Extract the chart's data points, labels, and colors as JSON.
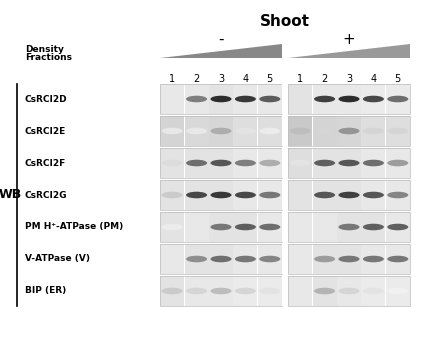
{
  "title": "Shoot",
  "minus_label": "-",
  "plus_label": "+",
  "density_label": "Density",
  "fractions_label": "Fractions",
  "wb_label": "WB",
  "row_labels": [
    "CsRCI2D",
    "CsRCI2E",
    "CsRCI2F",
    "CsRCI2G",
    "PM H⁺-ATPase (PM)",
    "V-ATPase (V)",
    "BIP (ER)"
  ],
  "fraction_numbers": [
    "1",
    "2",
    "3",
    "4",
    "5"
  ],
  "background_color": "#ffffff",
  "minus_bands": {
    "CsRCI2D": [
      0.04,
      0.55,
      0.9,
      0.85,
      0.7
    ],
    "CsRCI2E": [
      0.1,
      0.1,
      0.35,
      0.12,
      0.08
    ],
    "CsRCI2F": [
      0.15,
      0.62,
      0.72,
      0.55,
      0.35
    ],
    "CsRCI2G": [
      0.22,
      0.78,
      0.85,
      0.78,
      0.58
    ],
    "PM H+-ATPase": [
      0.08,
      0.1,
      0.58,
      0.68,
      0.62
    ],
    "V-ATPase": [
      0.1,
      0.48,
      0.62,
      0.58,
      0.52
    ],
    "BIP": [
      0.22,
      0.18,
      0.28,
      0.18,
      0.12
    ]
  },
  "plus_bands": {
    "CsRCI2D": [
      0.04,
      0.82,
      0.9,
      0.78,
      0.62
    ],
    "CsRCI2E": [
      0.28,
      0.18,
      0.45,
      0.18,
      0.18
    ],
    "CsRCI2F": [
      0.12,
      0.68,
      0.72,
      0.62,
      0.42
    ],
    "CsRCI2G": [
      0.04,
      0.72,
      0.82,
      0.72,
      0.52
    ],
    "PM H+-ATPase": [
      0.04,
      0.04,
      0.58,
      0.68,
      0.68
    ],
    "V-ATPase": [
      0.1,
      0.42,
      0.58,
      0.58,
      0.58
    ],
    "BIP": [
      0.04,
      0.32,
      0.18,
      0.12,
      0.06
    ]
  },
  "lane_bg_minus": [
    [
      0.91,
      0.91,
      0.89,
      0.91,
      0.91
    ],
    [
      0.83,
      0.85,
      0.84,
      0.87,
      0.87
    ],
    [
      0.89,
      0.89,
      0.89,
      0.91,
      0.91
    ],
    [
      0.89,
      0.89,
      0.89,
      0.91,
      0.91
    ],
    [
      0.89,
      0.91,
      0.89,
      0.89,
      0.91
    ],
    [
      0.91,
      0.89,
      0.89,
      0.91,
      0.91
    ],
    [
      0.89,
      0.91,
      0.91,
      0.92,
      0.92
    ]
  ],
  "lane_bg_plus": [
    [
      0.89,
      0.91,
      0.91,
      0.92,
      0.92
    ],
    [
      0.79,
      0.83,
      0.84,
      0.87,
      0.87
    ],
    [
      0.87,
      0.89,
      0.89,
      0.91,
      0.91
    ],
    [
      0.89,
      0.89,
      0.89,
      0.91,
      0.91
    ],
    [
      0.91,
      0.91,
      0.89,
      0.89,
      0.91
    ],
    [
      0.91,
      0.89,
      0.89,
      0.91,
      0.91
    ],
    [
      0.91,
      0.89,
      0.91,
      0.92,
      0.92
    ]
  ]
}
